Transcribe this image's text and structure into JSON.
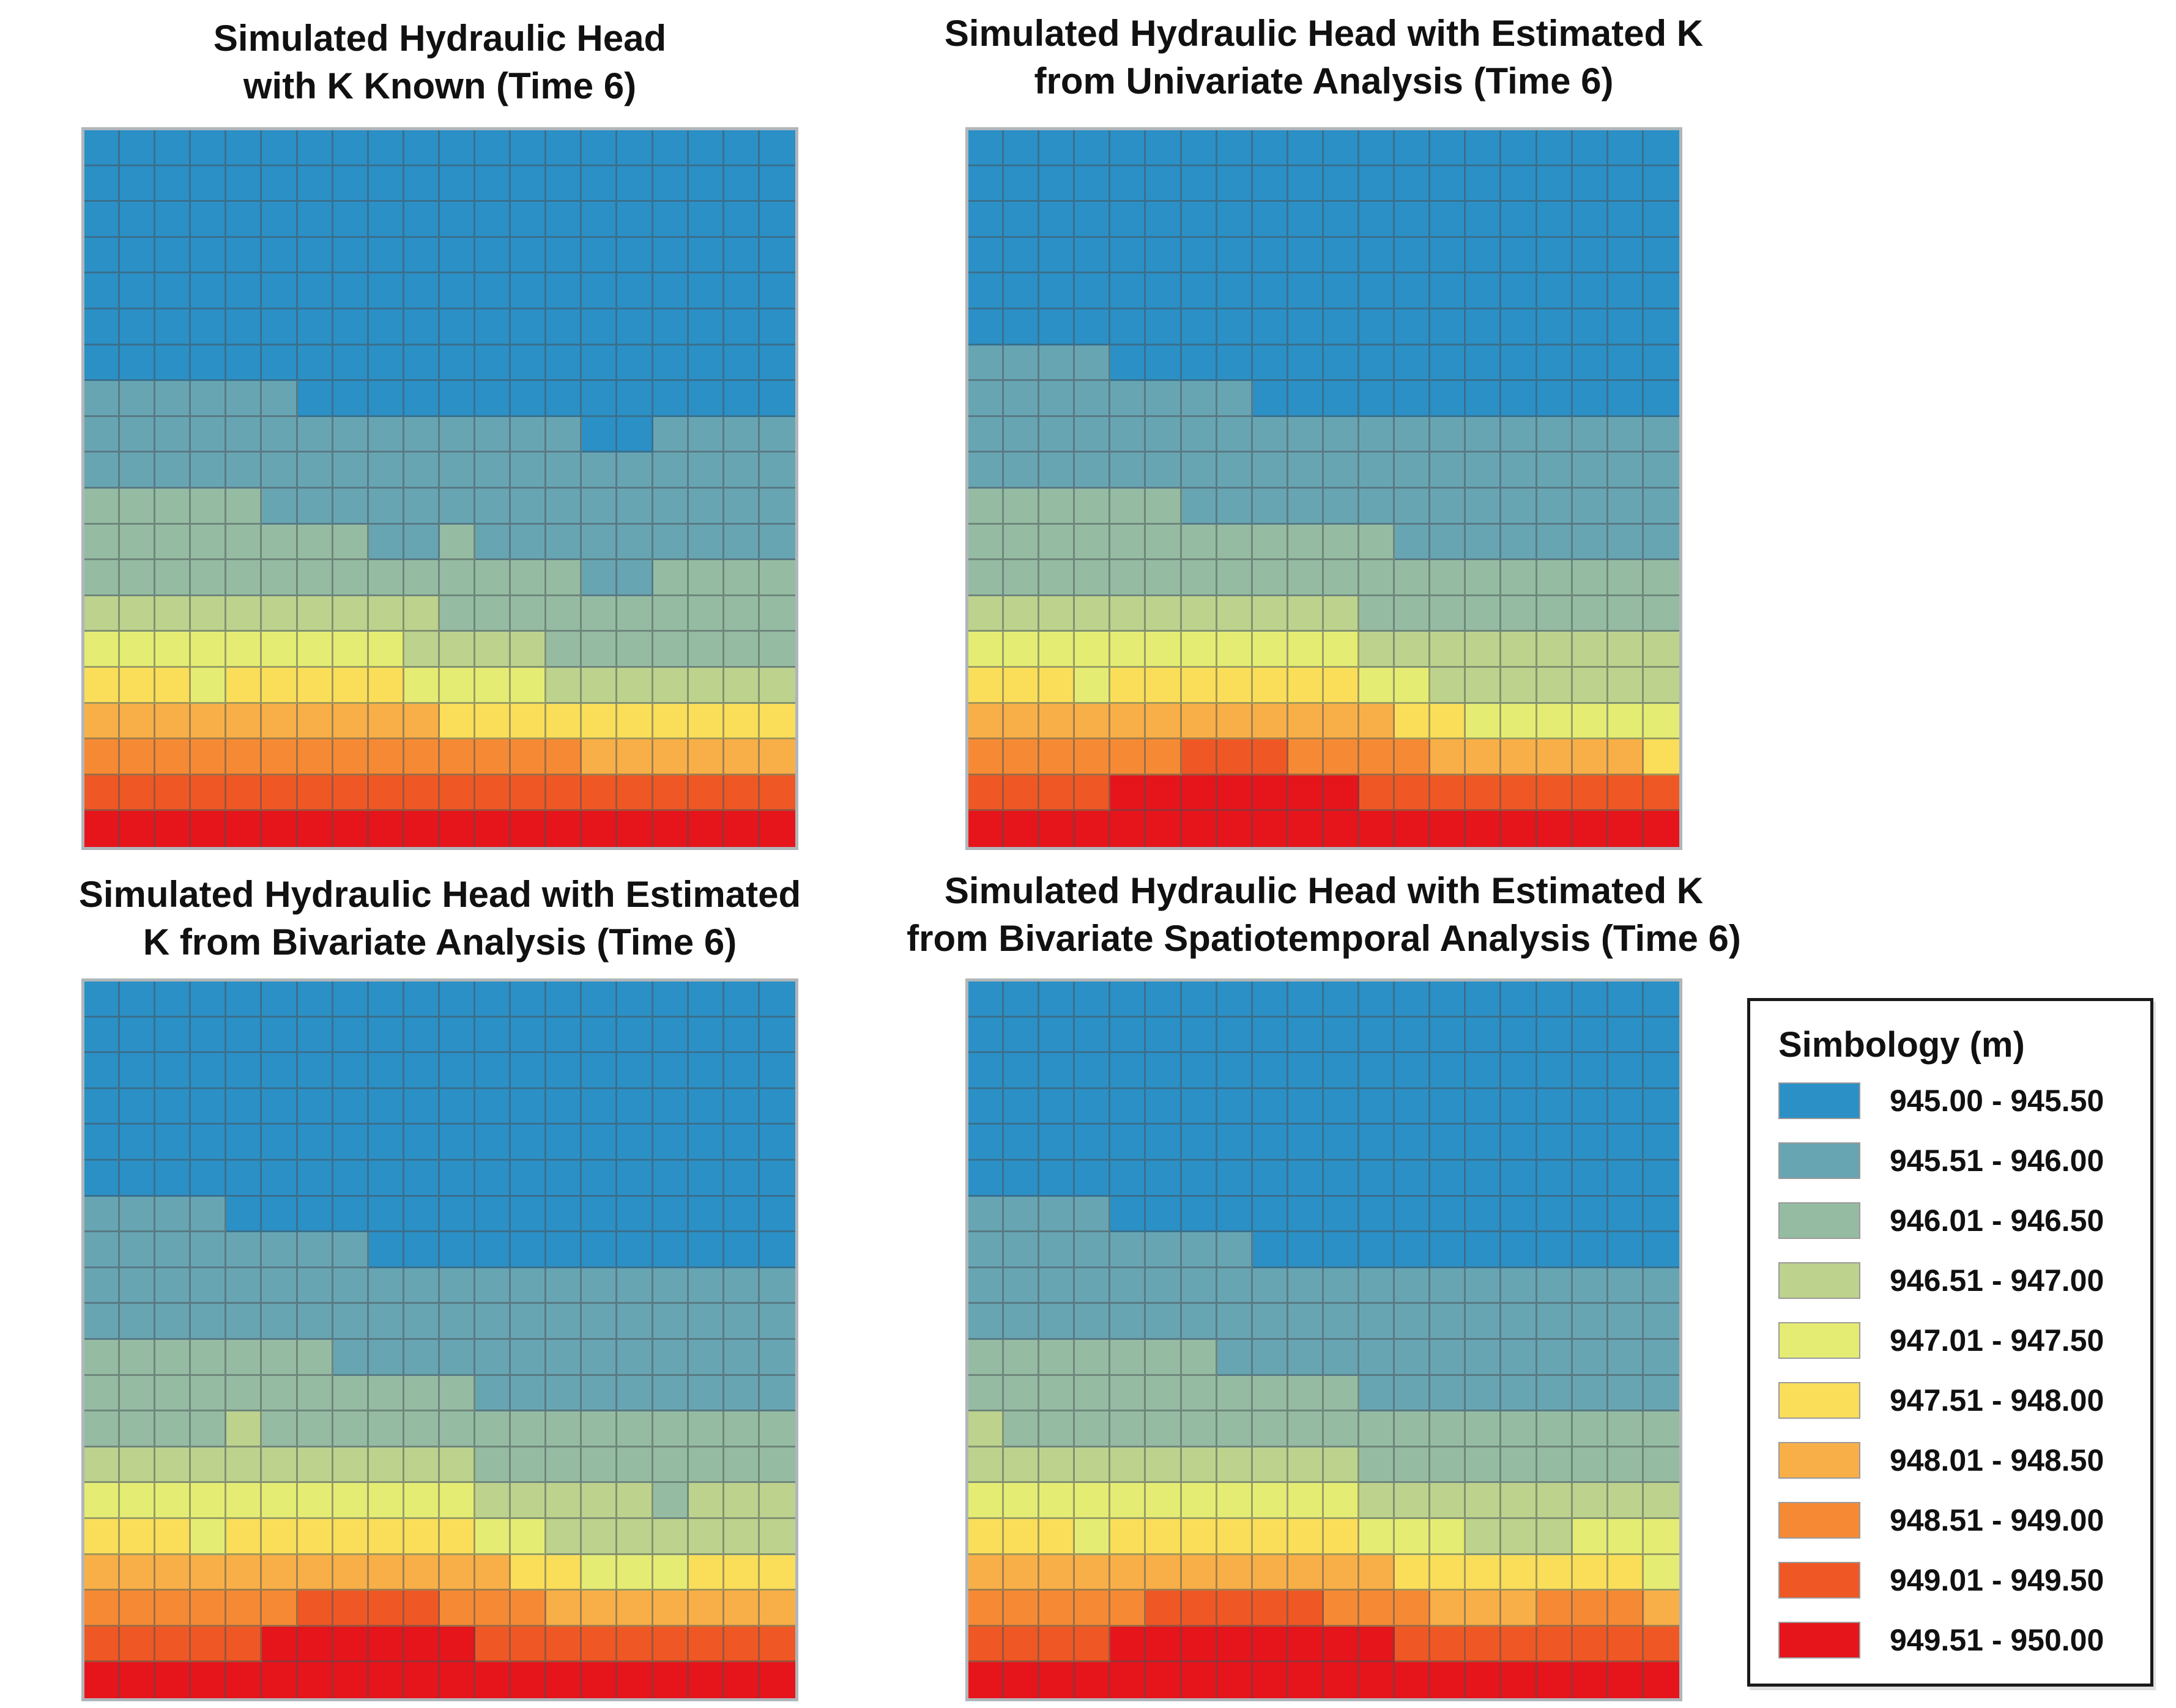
{
  "chart_data": {
    "type": "heatmap",
    "unit": "m",
    "legend_title": "Simbology (m)",
    "legend_position": "right",
    "grid": {
      "cols": 20,
      "rows": 20
    },
    "cell_encoding": "each string in panels[].rows is one grid row, top to bottom; each digit 0-9 is an index into classes[]",
    "classes": [
      {
        "label": "945.00 - 945.50",
        "color": "#2B90C6"
      },
      {
        "label": "945.51 - 946.00",
        "color": "#68A5B3"
      },
      {
        "label": "946.01 - 946.50",
        "color": "#95BCA2"
      },
      {
        "label": "946.51 - 947.00",
        "color": "#BDD28C"
      },
      {
        "label": "947.01 - 947.50",
        "color": "#E5EC73"
      },
      {
        "label": "947.51 - 948.00",
        "color": "#FADE5A"
      },
      {
        "label": "948.01 - 948.50",
        "color": "#F9AF47"
      },
      {
        "label": "948.51 - 949.00",
        "color": "#F68A34"
      },
      {
        "label": "949.01 - 949.50",
        "color": "#EF5825"
      },
      {
        "label": "949.51 - 950.00",
        "color": "#E5151B"
      }
    ],
    "panels": [
      {
        "title": "Simulated Hydraulic Head\nwith K Known (Time 6)",
        "rows": [
          "00000000000000000000",
          "00000000000000000000",
          "00000000000000000000",
          "00000000000000000000",
          "00000000000000000000",
          "00000000000000000000",
          "00000000000000000000",
          "11111100000000000000",
          "11111111111111001111",
          "11111111111111111111",
          "22222111111111111111",
          "22222222112111111111",
          "22222222222222112222",
          "33333333332222222222",
          "44444444433332222222",
          "55545555544443333333",
          "66666666665555555555",
          "77777777777777666666",
          "88888888888888888888",
          "99999999999999999999"
        ]
      },
      {
        "title": "Simulated Hydraulic Head with Estimated K\nfrom Univariate Analysis (Time 6)",
        "rows": [
          "00000000000000000000",
          "00000000000000000000",
          "00000000000000000000",
          "00000000000000000000",
          "00000000000000000000",
          "00000000000000000000",
          "11110000000000000000",
          "11111111000000000000",
          "11111111111111111111",
          "11111111111111111111",
          "22222211111111111111",
          "22222222222211111111",
          "22222222222222222222",
          "33333333333222222222",
          "44444444444333333333",
          "55545555555443333333",
          "66666666666655444444",
          "77777788877776666665",
          "88889999999888888888",
          "99999999999999999999"
        ]
      },
      {
        "title": "Simulated Hydraulic Head with Estimated\nK from Bivariate Analysis (Time 6)",
        "rows": [
          "00000000000000000000",
          "00000000000000000000",
          "00000000000000000000",
          "00000000000000000000",
          "00000000000000000000",
          "00000000000000000000",
          "11110000000000000000",
          "11111111000000000000",
          "11111111111111111111",
          "11111111111111111111",
          "22222221111111111111",
          "22222222222111111111",
          "22223222222222222222",
          "33333333333222222222",
          "44444444444333332333",
          "55545555555443333333",
          "66666666666655444555",
          "77777788887776666666",
          "88888999999888888888",
          "99999999999999999999"
        ]
      },
      {
        "title": "Simulated Hydraulic Head with Estimated K\nfrom Bivariate Spatiotemporal Analysis (Time 6)",
        "rows": [
          "00000000000000000000",
          "00000000000000000000",
          "00000000000000000000",
          "00000000000000000000",
          "00000000000000000000",
          "00000000000000000000",
          "11110000000000000000",
          "11111111000000000000",
          "11111111111111111111",
          "11111111111111111111",
          "22222221111111111111",
          "22222222222111111111",
          "32222222222222222222",
          "33333333333222222222",
          "44444444444333333333",
          "55545555555444333444",
          "66666666666655555554",
          "77777888887776667776",
          "88889999999988888888",
          "99999999999999999999"
        ]
      }
    ]
  }
}
